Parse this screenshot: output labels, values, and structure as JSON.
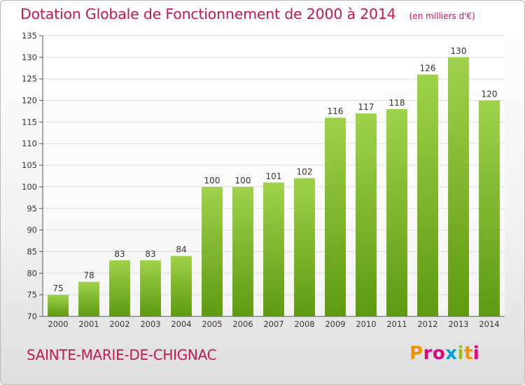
{
  "title": "Dotation Globale de Fonctionnement de 2000 à 2014",
  "unit_note": "(en milliers d'€)",
  "commune": "SAINTE-MARIE-DE-CHIGNAC",
  "brand": {
    "letters": [
      "P",
      "r",
      "o",
      "x",
      "i",
      "t",
      "i"
    ],
    "colors": [
      "#f39200",
      "#e6007e",
      "#e6007e",
      "#009fe3",
      "#95c11f",
      "#f39200",
      "#e6007e"
    ]
  },
  "colors": {
    "bar_top": "#9fd24a",
    "bar_bottom": "#5e9a10",
    "title": "#c4184f"
  },
  "chart_data": {
    "type": "bar",
    "categories": [
      "2000",
      "2001",
      "2002",
      "2003",
      "2004",
      "2005",
      "2006",
      "2007",
      "2008",
      "2009",
      "2010",
      "2011",
      "2012",
      "2013",
      "2014"
    ],
    "values": [
      75,
      78,
      83,
      83,
      84,
      100,
      100,
      101,
      102,
      116,
      117,
      118,
      126,
      130,
      120
    ],
    "data_labels": [
      "75",
      "78",
      "83",
      "83",
      "84",
      "100",
      "100",
      "101",
      "102",
      "116",
      "117",
      "118",
      "126",
      "130",
      "120"
    ],
    "title": "Dotation Globale de Fonctionnement de 2000 à 2014",
    "xlabel": "",
    "ylabel": "",
    "ylim": [
      70,
      135
    ],
    "yticks": [
      70,
      75,
      80,
      85,
      90,
      95,
      100,
      105,
      110,
      115,
      120,
      125,
      130,
      135
    ],
    "grid": true
  }
}
